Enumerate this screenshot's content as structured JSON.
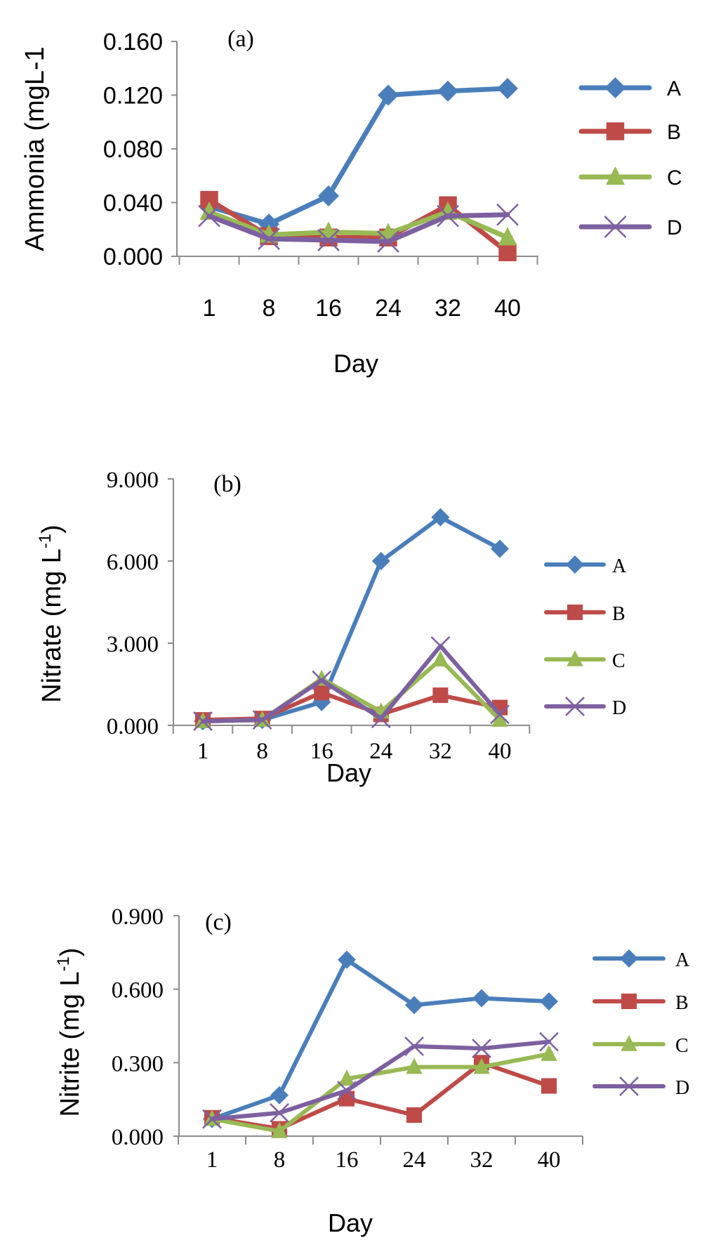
{
  "chart_data": [
    {
      "type": "line",
      "panel_label": "(a)",
      "xlabel": "Day",
      "ylabel": "Ammonia (mgL-1",
      "categories": [
        "1",
        "8",
        "16",
        "24",
        "32",
        "40"
      ],
      "ylim": [
        0,
        0.16
      ],
      "yticks": [
        "0.000",
        "0.040",
        "0.080",
        "0.120",
        "0.160"
      ],
      "grid": false,
      "legend": "right",
      "series": [
        {
          "name": "A",
          "marker": "diamond",
          "color": "#4a7ebb",
          "values": [
            0.037,
            0.024,
            0.045,
            0.12,
            0.123,
            0.125
          ]
        },
        {
          "name": "B",
          "marker": "square",
          "color": "#be4b48",
          "values": [
            0.042,
            0.015,
            0.014,
            0.014,
            0.038,
            0.003
          ]
        },
        {
          "name": "C",
          "marker": "triangle",
          "color": "#98b954",
          "values": [
            0.033,
            0.016,
            0.018,
            0.017,
            0.033,
            0.014
          ]
        },
        {
          "name": "D",
          "marker": "x",
          "color": "#7d60a0",
          "values": [
            0.03,
            0.013,
            0.012,
            0.011,
            0.03,
            0.031
          ]
        }
      ]
    },
    {
      "type": "line",
      "panel_label": "(b)",
      "xlabel": "Day",
      "ylabel": "Nitrate (mg L-1)",
      "categories": [
        "1",
        "8",
        "16",
        "24",
        "32",
        "40"
      ],
      "ylim": [
        0,
        9
      ],
      "yticks": [
        "0.000",
        "3.000",
        "6.000",
        "9.000"
      ],
      "grid": false,
      "legend": "right",
      "series": [
        {
          "name": "A",
          "marker": "diamond",
          "color": "#4a7ebb",
          "values": [
            0.15,
            0.2,
            0.85,
            6.0,
            7.6,
            6.45
          ]
        },
        {
          "name": "B",
          "marker": "square",
          "color": "#be4b48",
          "values": [
            0.2,
            0.25,
            1.2,
            0.4,
            1.1,
            0.65
          ]
        },
        {
          "name": "C",
          "marker": "triangle",
          "color": "#98b954",
          "values": [
            0.15,
            0.2,
            1.7,
            0.5,
            2.4,
            0.2
          ]
        },
        {
          "name": "D",
          "marker": "x",
          "color": "#7d60a0",
          "values": [
            0.15,
            0.2,
            1.65,
            0.25,
            2.9,
            0.4
          ]
        }
      ]
    },
    {
      "type": "line",
      "panel_label": "(c)",
      "xlabel": "Day",
      "ylabel": "Nitrite (mg L-1)",
      "categories": [
        "1",
        "8",
        "16",
        "24",
        "32",
        "40"
      ],
      "ylim": [
        0,
        0.9
      ],
      "yticks": [
        "0.000",
        "0.300",
        "0.600",
        "0.900"
      ],
      "grid": false,
      "legend": "right",
      "series": [
        {
          "name": "A",
          "marker": "diamond",
          "color": "#4a7ebb",
          "values": [
            0.07,
            0.167,
            0.72,
            0.535,
            0.563,
            0.55
          ]
        },
        {
          "name": "B",
          "marker": "square",
          "color": "#be4b48",
          "values": [
            0.075,
            0.03,
            0.153,
            0.086,
            0.3,
            0.205
          ]
        },
        {
          "name": "C",
          "marker": "triangle",
          "color": "#98b954",
          "values": [
            0.07,
            0.02,
            0.234,
            0.282,
            0.282,
            0.335
          ]
        },
        {
          "name": "D",
          "marker": "x",
          "color": "#7d60a0",
          "values": [
            0.07,
            0.095,
            0.186,
            0.367,
            0.358,
            0.385
          ]
        }
      ]
    }
  ]
}
